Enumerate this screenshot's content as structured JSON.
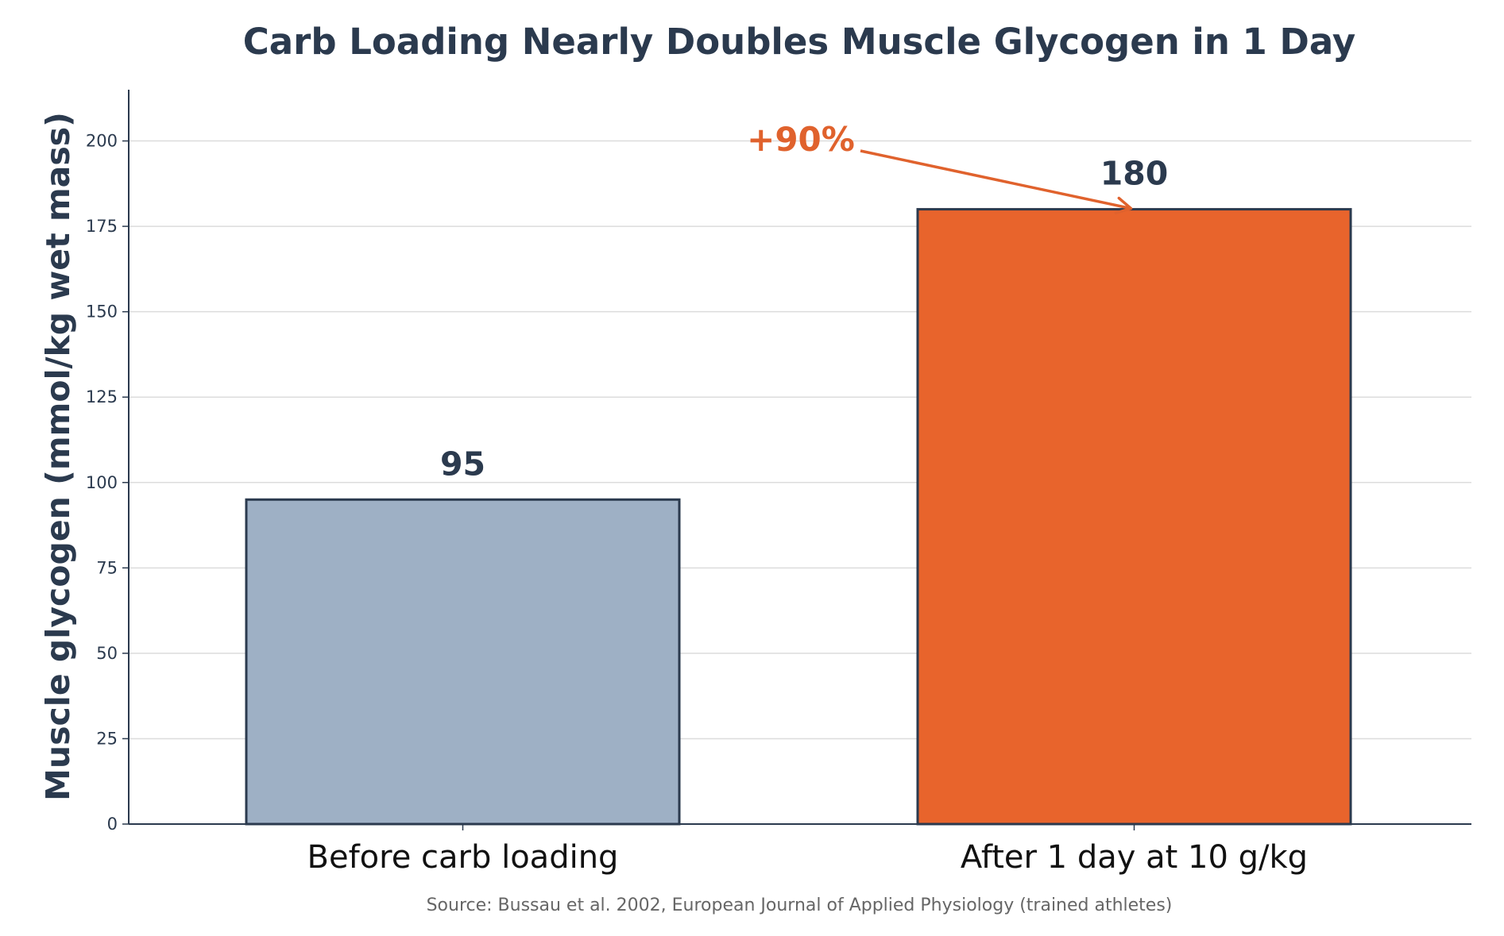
{
  "chart_data": {
    "type": "bar",
    "title": "Carb Loading Nearly Doubles Muscle Glycogen in 1 Day",
    "xlabel": "",
    "ylabel": "Muscle glycogen (mmol/kg wet mass)",
    "categories": [
      "Before carb loading",
      "After 1 day at 10 g/kg"
    ],
    "values": [
      95,
      180
    ],
    "value_labels": [
      "95",
      "180"
    ],
    "bar_colors": [
      "#9eb0c5",
      "#e8642c"
    ],
    "bar_edge_color": "#2b3a4e",
    "ylim": [
      0,
      215
    ],
    "yticks": [
      0,
      25,
      50,
      75,
      100,
      125,
      150,
      175,
      200
    ],
    "ytick_labels": [
      "0",
      "25",
      "50",
      "75",
      "100",
      "125",
      "150",
      "175",
      "200"
    ],
    "grid": "horizontal",
    "annotation": {
      "text": "+90%",
      "color": "#e0622d",
      "points_to": "After 1 day at 10 g/kg"
    },
    "source": "Source: Bussau et al. 2002, European Journal of Applied Physiology (trained athletes)"
  },
  "colors": {
    "text": "#2b3a4e",
    "grid": "#dcdcdc",
    "axis": "#2b3a4e",
    "source": "#666666"
  }
}
